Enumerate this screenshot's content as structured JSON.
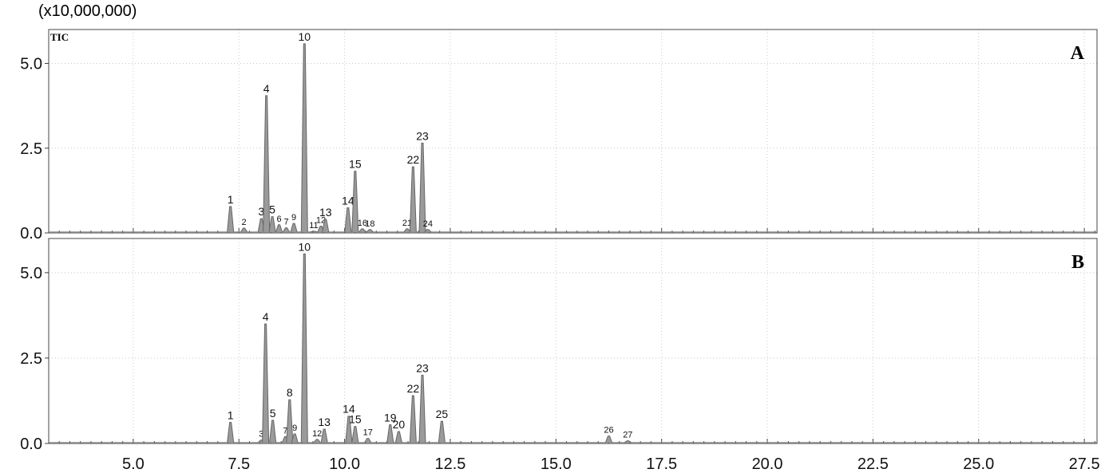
{
  "scale_note": "(x10,000,000)",
  "signal_label": "TIC",
  "chart_data": [
    {
      "type": "line",
      "panel_label": "A",
      "xlim": [
        3.0,
        27.8
      ],
      "ylim": [
        0,
        6.0
      ],
      "x_ticks": [
        "5.0",
        "7.5",
        "10.0",
        "12.5",
        "15.0",
        "17.5",
        "20.0",
        "22.5",
        "25.0",
        "27.5"
      ],
      "y_ticks": [
        "0.0",
        "2.5",
        "5.0"
      ],
      "grid": true,
      "peaks": [
        {
          "label": "1",
          "rt": 7.3,
          "intensity": 0.78
        },
        {
          "label": "2",
          "rt": 7.62,
          "intensity": 0.14
        },
        {
          "label": "3",
          "rt": 8.03,
          "intensity": 0.42
        },
        {
          "label": "4",
          "rt": 8.15,
          "intensity": 4.05
        },
        {
          "label": "5",
          "rt": 8.29,
          "intensity": 0.48
        },
        {
          "label": "6",
          "rt": 8.45,
          "intensity": 0.24
        },
        {
          "label": "7",
          "rt": 8.62,
          "intensity": 0.15
        },
        {
          "label": "9",
          "rt": 8.8,
          "intensity": 0.28
        },
        {
          "label": "10",
          "rt": 9.05,
          "intensity": 5.58
        },
        {
          "label": "11",
          "rt": 9.27,
          "intensity": 0.05
        },
        {
          "label": "12",
          "rt": 9.44,
          "intensity": 0.2
        },
        {
          "label": "13",
          "rt": 9.55,
          "intensity": 0.4
        },
        {
          "label": "14",
          "rt": 10.08,
          "intensity": 0.74
        },
        {
          "label": "15",
          "rt": 10.25,
          "intensity": 1.82
        },
        {
          "label": "16",
          "rt": 10.42,
          "intensity": 0.12
        },
        {
          "label": "18",
          "rt": 10.6,
          "intensity": 0.1
        },
        {
          "label": "21",
          "rt": 11.48,
          "intensity": 0.12
        },
        {
          "label": "22",
          "rt": 11.62,
          "intensity": 1.95
        },
        {
          "label": "23",
          "rt": 11.84,
          "intensity": 2.65
        },
        {
          "label": "24",
          "rt": 11.97,
          "intensity": 0.1
        }
      ]
    },
    {
      "type": "line",
      "panel_label": "B",
      "xlim": [
        3.0,
        27.8
      ],
      "ylim": [
        0,
        6.0
      ],
      "x_ticks": [
        "5.0",
        "7.5",
        "10.0",
        "12.5",
        "15.0",
        "17.5",
        "20.0",
        "22.5",
        "25.0",
        "27.5"
      ],
      "y_ticks": [
        "0.0",
        "2.5",
        "5.0"
      ],
      "grid": true,
      "peaks": [
        {
          "label": "1",
          "rt": 7.3,
          "intensity": 0.62
        },
        {
          "label": "3",
          "rt": 8.03,
          "intensity": 0.1
        },
        {
          "label": "4",
          "rt": 8.13,
          "intensity": 3.5
        },
        {
          "label": "5",
          "rt": 8.3,
          "intensity": 0.68
        },
        {
          "label": "7",
          "rt": 8.6,
          "intensity": 0.2
        },
        {
          "label": "8",
          "rt": 8.7,
          "intensity": 1.28
        },
        {
          "label": "9",
          "rt": 8.82,
          "intensity": 0.28
        },
        {
          "label": "10",
          "rt": 9.05,
          "intensity": 5.55
        },
        {
          "label": "12",
          "rt": 9.35,
          "intensity": 0.12
        },
        {
          "label": "13",
          "rt": 9.52,
          "intensity": 0.42
        },
        {
          "label": "14",
          "rt": 10.1,
          "intensity": 0.8
        },
        {
          "label": "15",
          "rt": 10.25,
          "intensity": 0.5
        },
        {
          "label": "17",
          "rt": 10.55,
          "intensity": 0.15
        },
        {
          "label": "19",
          "rt": 11.08,
          "intensity": 0.55
        },
        {
          "label": "20",
          "rt": 11.28,
          "intensity": 0.35
        },
        {
          "label": "22",
          "rt": 11.62,
          "intensity": 1.4
        },
        {
          "label": "23",
          "rt": 11.84,
          "intensity": 2.0
        },
        {
          "label": "25",
          "rt": 12.3,
          "intensity": 0.65
        },
        {
          "label": "26",
          "rt": 16.25,
          "intensity": 0.22
        },
        {
          "label": "27",
          "rt": 16.7,
          "intensity": 0.08
        }
      ]
    }
  ]
}
